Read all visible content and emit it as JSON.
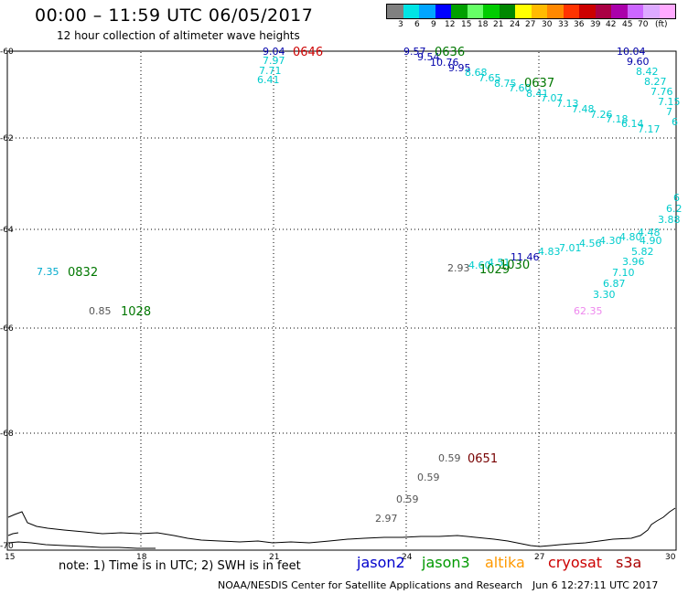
{
  "title": "00:00 – 11:59 UTC 06/05/2017",
  "subtitle": "12 hour collection of altimeter wave heights",
  "scale": {
    "colors": [
      "#808080",
      "#00e5e5",
      "#00a5ff",
      "#0000ff",
      "#00a000",
      "#66ff66",
      "#00cc00",
      "#008800",
      "#ffff00",
      "#ffbb00",
      "#ff8800",
      "#ff3300",
      "#cc0000",
      "#aa0044",
      "#aa00aa",
      "#cc66ff",
      "#ddaaff",
      "#ffaaff",
      "#000000"
    ],
    "labels": [
      "3",
      "6",
      "9",
      "12",
      "15",
      "18",
      "21",
      "24",
      "27",
      "30",
      "33",
      "36",
      "39",
      "42",
      "45",
      "70",
      "(ft)"
    ]
  },
  "map": {
    "y_ticks": [
      "-60",
      "-62",
      "-64",
      "-66",
      "-68",
      "-70"
    ],
    "x_ticks": [
      "15",
      "18",
      "21",
      "24",
      "27",
      "30"
    ]
  },
  "heights": [
    {
      "text": "9.04",
      "color": "#0000aa"
    },
    {
      "text": "7.97",
      "color": "#00cccc"
    },
    {
      "text": "7.71",
      "color": "#00cccc"
    },
    {
      "text": "6.41",
      "color": "#00cccc"
    },
    {
      "text": "0646",
      "color": "#cc0000"
    },
    {
      "text": "9.57",
      "color": "#0000aa"
    },
    {
      "text": "9.54",
      "color": "#0000aa"
    },
    {
      "text": "10.76",
      "color": "#0000aa"
    },
    {
      "text": "0636",
      "color": "#007700"
    },
    {
      "text": "9.95",
      "color": "#0000aa"
    },
    {
      "text": "8.68",
      "color": "#00cccc"
    },
    {
      "text": "7.65",
      "color": "#00cccc"
    },
    {
      "text": "8.75",
      "color": "#00cccc"
    },
    {
      "text": "7.60",
      "color": "#00cccc"
    },
    {
      "text": "0637",
      "color": "#007700"
    },
    {
      "text": "8.41",
      "color": "#00cccc"
    },
    {
      "text": "7.07",
      "color": "#00cccc"
    },
    {
      "text": "7.13",
      "color": "#00cccc"
    },
    {
      "text": "7.48",
      "color": "#00cccc"
    },
    {
      "text": "7.26",
      "color": "#00cccc"
    },
    {
      "text": "7.18",
      "color": "#00cccc"
    },
    {
      "text": "6.14",
      "color": "#00cccc"
    },
    {
      "text": "7.17",
      "color": "#00cccc"
    },
    {
      "text": "10.04",
      "color": "#0000aa"
    },
    {
      "text": "9.60",
      "color": "#0000aa"
    },
    {
      "text": "8.42",
      "color": "#00cccc"
    },
    {
      "text": "8.27",
      "color": "#00cccc"
    },
    {
      "text": "7.76",
      "color": "#00cccc"
    },
    {
      "text": "7.15",
      "color": "#00cccc"
    },
    {
      "text": "7",
      "color": "#00cccc"
    },
    {
      "text": "6",
      "color": "#00cccc"
    },
    {
      "text": "7.35",
      "color": "#00aacc"
    },
    {
      "text": "0832",
      "color": "#007700"
    },
    {
      "text": "0.85",
      "color": "#555555"
    },
    {
      "text": "1028",
      "color": "#007700"
    },
    {
      "text": "2.93",
      "color": "#555555"
    },
    {
      "text": "4.60",
      "color": "#00cccc"
    },
    {
      "text": "1029",
      "color": "#007700"
    },
    {
      "text": "4.51",
      "color": "#00cccc"
    },
    {
      "text": "1030",
      "color": "#007700"
    },
    {
      "text": "11.46",
      "color": "#0000aa"
    },
    {
      "text": "4.83",
      "color": "#00cccc"
    },
    {
      "text": "7.01",
      "color": "#00cccc"
    },
    {
      "text": "4.56",
      "color": "#00cccc"
    },
    {
      "text": "4.30",
      "color": "#00cccc"
    },
    {
      "text": "4.80",
      "color": "#00cccc"
    },
    {
      "text": "4.48",
      "color": "#00cccc"
    },
    {
      "text": "4.90",
      "color": "#00cccc"
    },
    {
      "text": "5.82",
      "color": "#00cccc"
    },
    {
      "text": "3.96",
      "color": "#00cccc"
    },
    {
      "text": "7.10",
      "color": "#00cccc"
    },
    {
      "text": "6.87",
      "color": "#00cccc"
    },
    {
      "text": "3.30",
      "color": "#00cccc"
    },
    {
      "text": "62.35",
      "color": "#ee88ee"
    },
    {
      "text": "3.88",
      "color": "#00cccc"
    },
    {
      "text": "6.2",
      "color": "#00cccc"
    },
    {
      "text": "6",
      "color": "#00cccc"
    },
    {
      "text": "0.59",
      "color": "#555555"
    },
    {
      "text": "0651",
      "color": "#770000"
    },
    {
      "text": "0.59",
      "color": "#555555"
    },
    {
      "text": "0.59",
      "color": "#555555"
    },
    {
      "text": "2.97",
      "color": "#555555"
    }
  ],
  "note": "note: 1) Time is in UTC; 2) SWH is in feet",
  "legend": [
    {
      "text": "jason2",
      "color": "#0000cc"
    },
    {
      "text": "jason3",
      "color": "#009900"
    },
    {
      "text": "altika",
      "color": "#ff9900"
    },
    {
      "text": "cryosat",
      "color": "#cc0000"
    },
    {
      "text": "s3a",
      "color": "#aa0000"
    }
  ],
  "footer": "NOAA/NESDIS Center for Satellite Applications and Research",
  "footer_time": "Jun  6 12:27:11 UTC 2017"
}
